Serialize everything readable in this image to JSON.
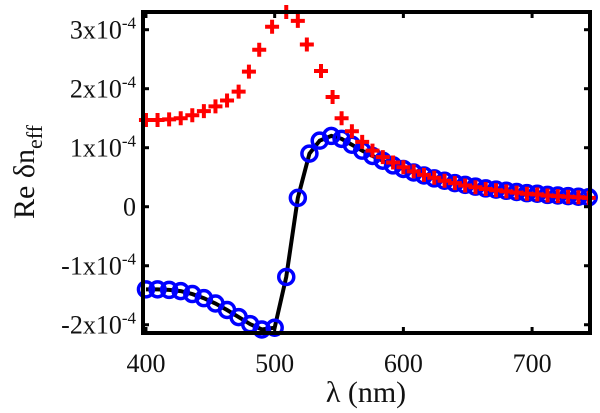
{
  "chart_data": {
    "type": "scatter",
    "title": "",
    "xlabel": "λ (nm)",
    "ylabel": {
      "main": "Re δn",
      "subscript": "eff"
    },
    "xlim": [
      397.7,
      745
    ],
    "ylim": [
      -0.000214,
      0.00033
    ],
    "grid": false,
    "legend": "none",
    "x_ticks": [
      {
        "value": 400,
        "label": "400"
      },
      {
        "value": 500,
        "label": "500"
      },
      {
        "value": 600,
        "label": "600"
      },
      {
        "value": 700,
        "label": "700"
      }
    ],
    "y_ticks": [
      {
        "value": -0.0002,
        "base": "-2x10",
        "exp": "-4"
      },
      {
        "value": -0.0001,
        "base": "-1x10",
        "exp": "-4"
      },
      {
        "value": 0,
        "base": "0",
        "exp": ""
      },
      {
        "value": 0.0001,
        "base": "1x10",
        "exp": "-4"
      },
      {
        "value": 0.0002,
        "base": "2x10",
        "exp": "-4"
      },
      {
        "value": 0.0003,
        "base": "3x10",
        "exp": "-4"
      }
    ],
    "series": [
      {
        "name": "blue-circles-with-line",
        "marker": "circle",
        "color": "#0000ff",
        "line_color": "#000000",
        "scale": 0.0001,
        "x": [
          400,
          409,
          418,
          427,
          436,
          445,
          454,
          463,
          472,
          481,
          490,
          500,
          509,
          518,
          527,
          535,
          544,
          552,
          560,
          568,
          576,
          584,
          592,
          600,
          608,
          616,
          624,
          632,
          640,
          648,
          656,
          664,
          672,
          680,
          688,
          696,
          704,
          712,
          720,
          728,
          736,
          744
        ],
        "y": [
          -1.4,
          -1.4,
          -1.41,
          -1.43,
          -1.48,
          -1.55,
          -1.64,
          -1.75,
          -1.87,
          -1.99,
          -2.08,
          -2.05,
          -1.19,
          0.15,
          0.9,
          1.12,
          1.2,
          1.15,
          1.05,
          0.95,
          0.86,
          0.78,
          0.7,
          0.64,
          0.58,
          0.53,
          0.48,
          0.44,
          0.4,
          0.37,
          0.34,
          0.31,
          0.29,
          0.27,
          0.25,
          0.23,
          0.22,
          0.2,
          0.19,
          0.18,
          0.17,
          0.16
        ]
      },
      {
        "name": "red-crosses",
        "marker": "plus",
        "color": "#ff0000",
        "scale": 0.0001,
        "x": [
          400,
          409,
          418,
          427,
          436,
          445,
          454,
          463,
          472,
          480,
          488,
          498,
          509,
          518,
          525,
          536,
          545,
          552,
          560,
          568,
          576,
          584,
          592,
          600,
          608,
          616,
          624,
          632,
          640,
          648,
          656,
          664,
          672,
          680,
          688,
          696,
          704,
          712,
          720,
          728,
          736,
          744
        ],
        "y": [
          1.47,
          1.47,
          1.48,
          1.5,
          1.55,
          1.62,
          1.7,
          1.8,
          1.95,
          2.29,
          2.66,
          3.05,
          3.3,
          3.15,
          2.75,
          2.3,
          1.86,
          1.5,
          1.28,
          1.1,
          0.95,
          0.84,
          0.75,
          0.67,
          0.6,
          0.54,
          0.49,
          0.44,
          0.4,
          0.36,
          0.33,
          0.3,
          0.28,
          0.26,
          0.24,
          0.22,
          0.21,
          0.19,
          0.18,
          0.17,
          0.16,
          0.15
        ]
      }
    ]
  }
}
